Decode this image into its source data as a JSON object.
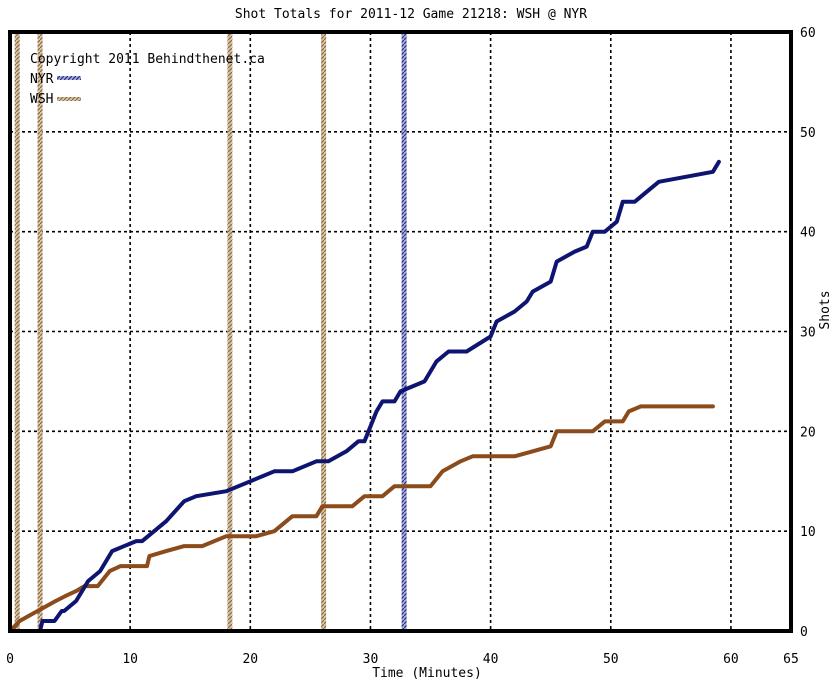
{
  "chart_data": {
    "type": "line",
    "title": "Shot Totals for 2011-12 Game 21218: WSH @ NYR",
    "xlabel": "Time (Minutes)",
    "ylabel": "Shots",
    "copyright": "Copyright 2011 Behindthenet.ca",
    "xlim": [
      0,
      65
    ],
    "ylim": [
      0,
      60
    ],
    "x_ticks": [
      0,
      10,
      20,
      30,
      40,
      50,
      60,
      65
    ],
    "y_ticks": [
      0,
      10,
      20,
      30,
      40,
      50,
      60
    ],
    "grid": true,
    "legend_position": "top-left",
    "series": [
      {
        "name": "NYR",
        "color": "#0d1570",
        "x": [
          0,
          2.5,
          2.7,
          3.7,
          4.3,
          4.5,
          5.5,
          6,
          6.5,
          7.5,
          8,
          8.5,
          10.5,
          11,
          13,
          14.5,
          15.5,
          18,
          20,
          22,
          23.5,
          25.5,
          26.5,
          28,
          29,
          29.5,
          30.5,
          31,
          32,
          32.5,
          33.5,
          34.5,
          35.5,
          36.5,
          38,
          40,
          40.5,
          42,
          43,
          43.5,
          45,
          45.5,
          47,
          48,
          48.5,
          49.5,
          50.5,
          51,
          52,
          53,
          54,
          58.5,
          59
        ],
        "y": [
          0,
          0,
          1,
          1,
          2,
          2,
          3,
          4,
          5,
          6,
          7,
          8,
          9,
          9,
          11,
          13,
          13.5,
          14,
          15,
          16,
          16,
          17,
          17,
          18,
          19,
          19,
          22,
          23,
          23,
          24,
          24.5,
          25,
          27,
          28,
          28,
          29.5,
          31,
          32,
          33,
          34,
          35,
          37,
          38,
          38.5,
          40,
          40,
          41,
          43,
          43,
          44,
          45,
          46,
          47
        ]
      },
      {
        "name": "WSH",
        "color": "#8b4b1a",
        "x": [
          0,
          0.8,
          2.3,
          3.8,
          4.6,
          5.5,
          6.2,
          7.3,
          8.3,
          9.2,
          11.4,
          11.6,
          13,
          14.5,
          16,
          18,
          20.5,
          22,
          23.5,
          25.5,
          26,
          28.5,
          29.5,
          31,
          32,
          33.5,
          35,
          36,
          37.5,
          38.5,
          42,
          43.5,
          45,
          45.5,
          48.5,
          49.5,
          51,
          51.5,
          52.5,
          58.5
        ],
        "y": [
          0,
          1,
          2,
          3,
          3.5,
          4,
          4.5,
          4.5,
          6,
          6.5,
          6.5,
          7.5,
          8,
          8.5,
          8.5,
          9.5,
          9.5,
          10,
          11.5,
          11.5,
          12.5,
          12.5,
          13.5,
          13.5,
          14.5,
          14.5,
          14.5,
          16,
          17,
          17.5,
          17.5,
          18,
          18.5,
          20,
          20,
          21,
          21,
          22,
          22.5,
          22.5
        ]
      }
    ],
    "period_markers_nyr": [
      32.8
    ],
    "period_markers_wsh": [
      0.6,
      2.5,
      18.3,
      26.1
    ]
  }
}
